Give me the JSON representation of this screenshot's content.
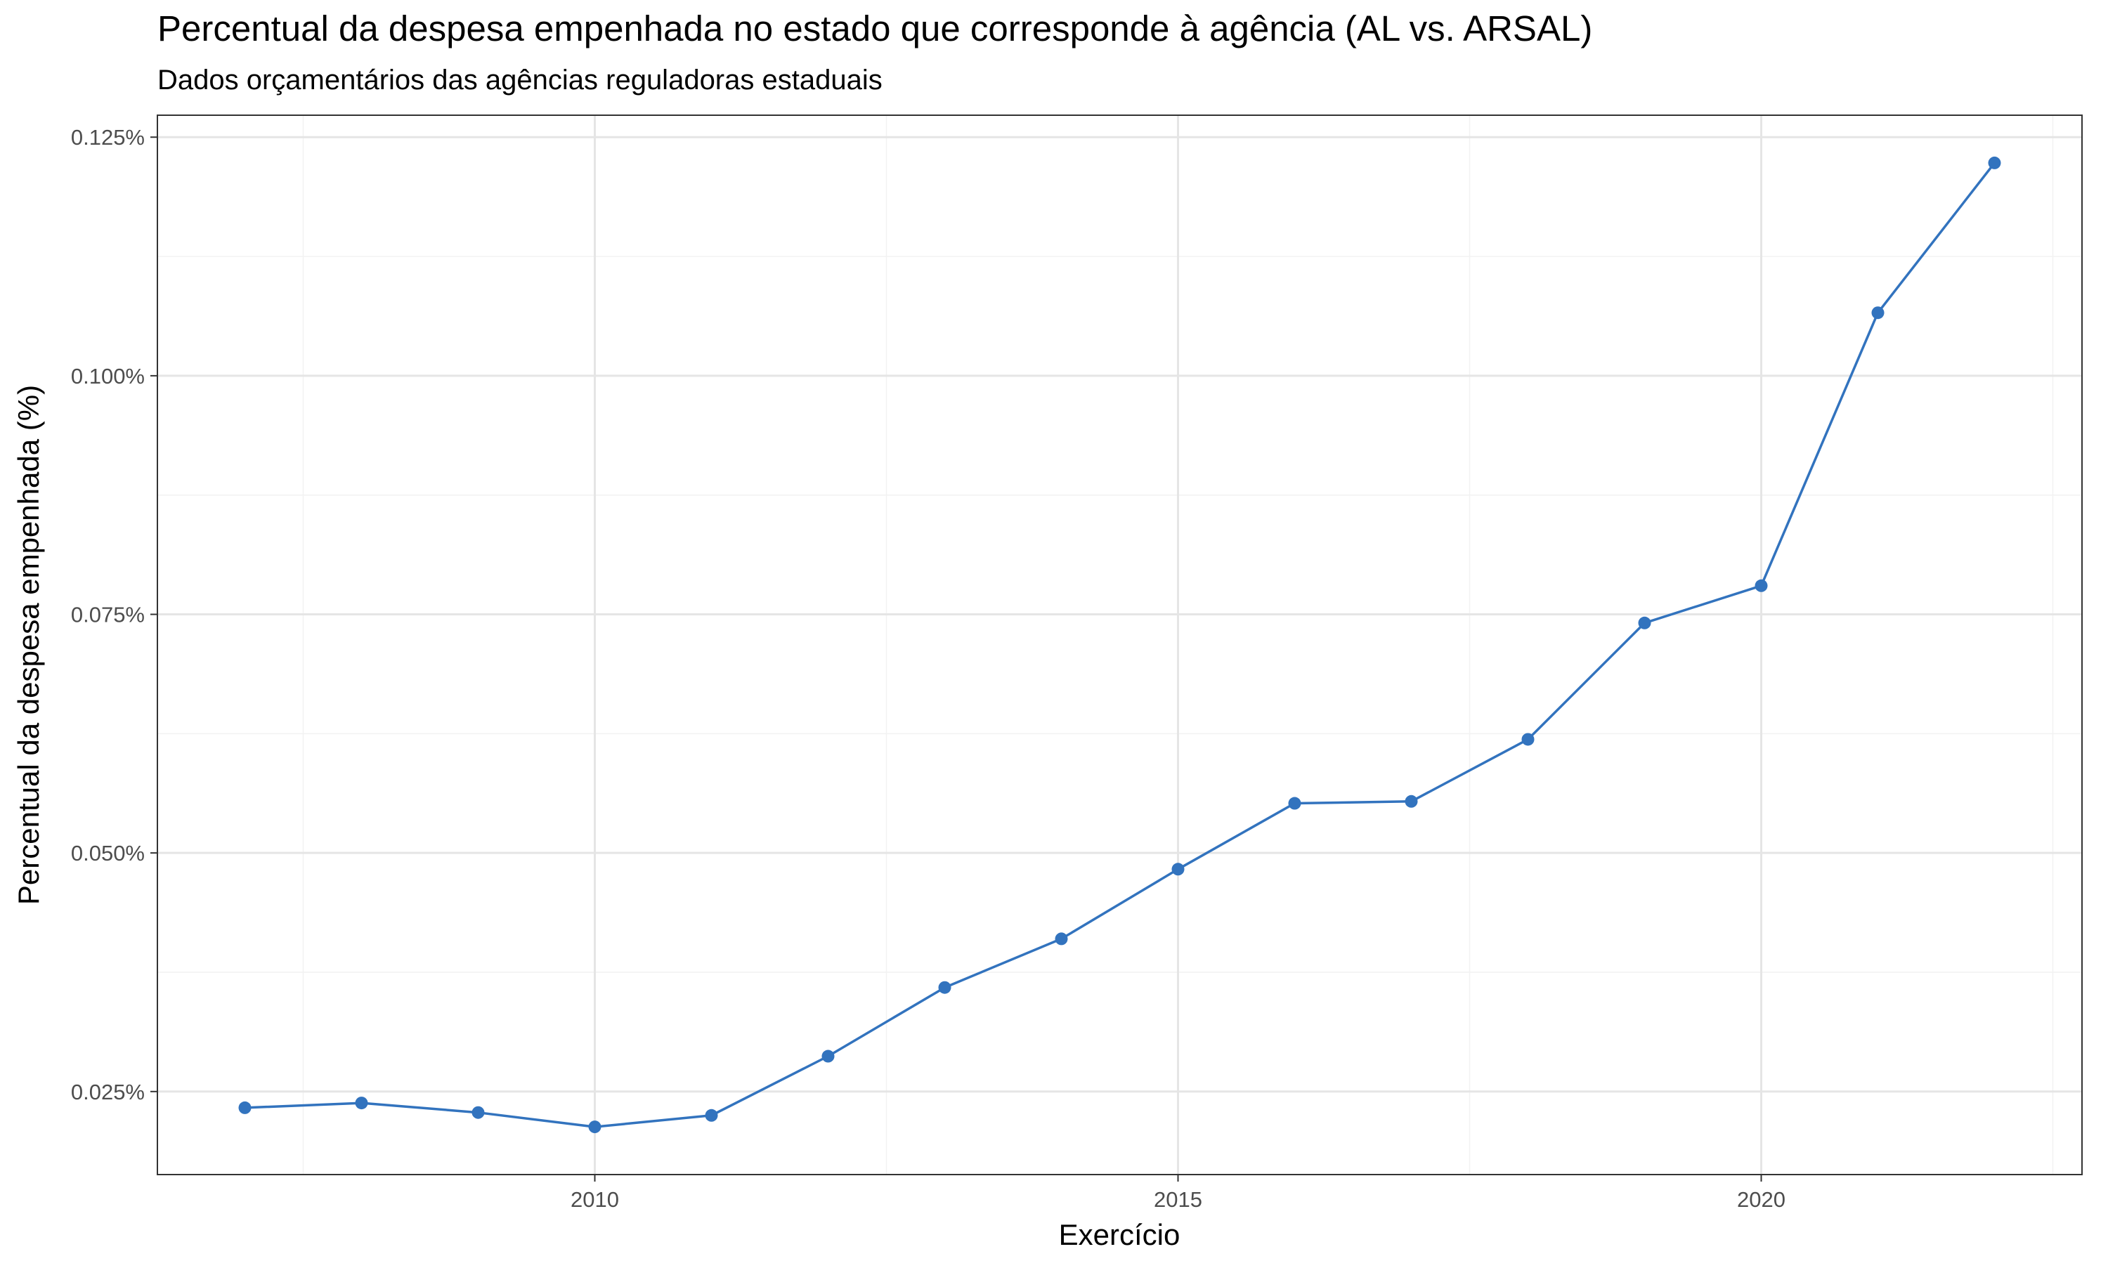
{
  "chart_data": {
    "type": "line",
    "title": "Percentual da despesa empenhada no estado que corresponde à agência (AL vs. ARSAL)",
    "subtitle": "Dados orçamentários das agências reguladoras estaduais",
    "xlabel": "Exercício",
    "ylabel": "Percentual da despesa empenhada (%)",
    "x": [
      2007,
      2008,
      2009,
      2010,
      2011,
      2012,
      2013,
      2014,
      2015,
      2016,
      2017,
      2018,
      2019,
      2020,
      2021,
      2022
    ],
    "series": [
      {
        "values": [
          0.0233,
          0.0238,
          0.0228,
          0.0213,
          0.0225,
          0.0287,
          0.0359,
          0.041,
          0.0483,
          0.0552,
          0.0554,
          0.0619,
          0.0741,
          0.078,
          0.1066,
          0.1223
        ],
        "color": "#3273BE"
      }
    ],
    "xlim": [
      2006.25,
      2022.75
    ],
    "ylim": [
      0.0163,
      0.1273
    ],
    "x_ticks": [
      2010,
      2015,
      2020
    ],
    "x_tick_labels": [
      "2010",
      "2015",
      "2020"
    ],
    "y_ticks": [
      0.025,
      0.05,
      0.075,
      0.1,
      0.125
    ],
    "y_tick_labels": [
      "0.025%",
      "0.050%",
      "0.075%",
      "0.100%",
      "0.125%"
    ],
    "x_minor_ticks": [
      2007.5,
      2012.5,
      2017.5,
      2022.5
    ],
    "y_minor_ticks": [
      0.0375,
      0.0625,
      0.0875,
      0.1125
    ],
    "grid": true,
    "theme": {
      "panel_border": "#333333",
      "grid_major": "#E5E5E5",
      "grid_minor": "#F2F2F2",
      "text": "#000000",
      "tick_text": "#4D4D4D"
    }
  }
}
